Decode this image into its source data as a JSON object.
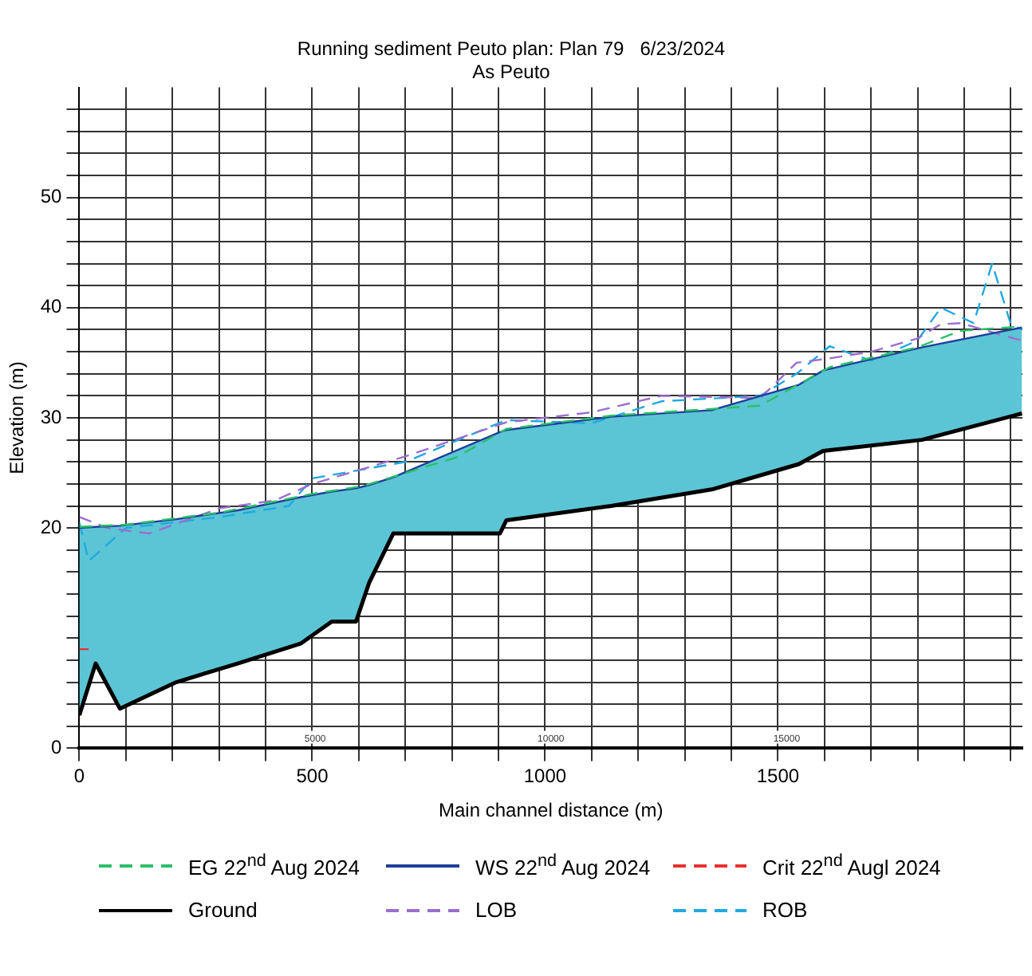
{
  "chart_data": {
    "type": "line",
    "title": "Running sediment Peuto plan: Plan 79   6/23/2024",
    "subtitle": "As Peuto",
    "xlabel": "Main channel distance (m)",
    "ylabel": "Elevation (m)",
    "xlim": [
      0,
      2025
    ],
    "ylim": [
      0,
      60
    ],
    "xticks": [
      0,
      {
        "value": 100,
        "label": null
      },
      {
        "value": 200,
        "label": null
      },
      {
        "value": 300,
        "label": null
      },
      {
        "value": 400,
        "label": null
      },
      500,
      {
        "value": 600,
        "label": null
      },
      {
        "value": 700,
        "label": null
      },
      {
        "value": 800,
        "label": null
      },
      {
        "value": 900,
        "label": null
      },
      1000,
      {
        "value": 1100,
        "label": null
      },
      {
        "value": 1200,
        "label": null
      },
      {
        "value": 1300,
        "label": null
      },
      {
        "value": 1400,
        "label": null
      },
      1500,
      {
        "value": 1600,
        "label": null
      },
      {
        "value": 1700,
        "label": null
      },
      {
        "value": 1800,
        "label": null
      },
      {
        "value": 1900,
        "label": null
      },
      {
        "value": 2000,
        "label": null
      }
    ],
    "yticks": [
      0,
      {
        "value": 2,
        "label": null
      },
      {
        "value": 4,
        "label": null
      },
      {
        "value": 6,
        "label": null
      },
      {
        "value": 8,
        "label": null
      },
      {
        "value": 10,
        "label": null
      },
      {
        "value": 12,
        "label": null
      },
      {
        "value": 14,
        "label": null
      },
      {
        "value": 16,
        "label": null
      },
      {
        "value": 18,
        "label": null
      },
      20,
      {
        "value": 22,
        "label": null
      },
      {
        "value": 24,
        "label": null
      },
      {
        "value": 26,
        "label": null
      },
      {
        "value": 28,
        "label": null
      },
      30,
      {
        "value": 32,
        "label": null
      },
      {
        "value": 34,
        "label": null
      },
      {
        "value": 36,
        "label": null
      },
      {
        "value": 38,
        "label": null
      },
      40,
      {
        "value": 42,
        "label": null
      },
      {
        "value": 44,
        "label": null
      },
      {
        "value": 46,
        "label": null
      },
      {
        "value": 48,
        "label": null
      },
      50,
      {
        "value": 52,
        "label": null
      },
      {
        "value": 54,
        "label": null
      },
      {
        "value": 56,
        "label": null
      },
      {
        "value": 58,
        "label": null
      }
    ],
    "grid": true,
    "legend": "bottom",
    "annotations": [
      "5000",
      "10000",
      "15000"
    ],
    "series": [
      {
        "name": "EG 22$^{nd}$ Aug 2024",
        "color": "#2bbf6a",
        "line_style": "dashed",
        "x": [
          0,
          100,
          302,
          500,
          608,
          809,
          917,
          1142,
          1462,
          1611,
          1799,
          1892,
          2024
        ],
        "values": [
          20.1,
          20.3,
          21.4,
          23.1,
          23.8,
          26.4,
          29.0,
          30.2,
          31.1,
          34.6,
          36.4,
          37.9,
          38.3
        ]
      },
      {
        "name": "WS 22$^{nd}$ Aug 2024",
        "color": "#1f3f99",
        "line_style": "solid",
        "x": [
          0,
          35,
          87,
          208,
          340,
          475,
          542,
          594,
          622,
          674,
          903,
          917,
          1142,
          1358,
          1545,
          1597,
          1809,
          2024
        ],
        "values": [
          20,
          20.1,
          20.2,
          20.8,
          21.6,
          22.8,
          23.3,
          23.6,
          23.9,
          24.6,
          28.7,
          28.9,
          30.1,
          30.7,
          33,
          34.3,
          36.4,
          38.2
        ],
        "lower": [
          3,
          7.7,
          3.6,
          6,
          7.7,
          9.5,
          11.5,
          11.5,
          15,
          19.5,
          19.5,
          20.7,
          22,
          23.5,
          25.8,
          27,
          28,
          30.4
        ],
        "upper": [
          20,
          20.1,
          20.2,
          20.8,
          21.6,
          22.8,
          23.3,
          23.6,
          23.9,
          24.6,
          28.7,
          28.9,
          30.1,
          30.7,
          33,
          34.3,
          36.4,
          38.2
        ]
      },
      {
        "name": "Crit 22$^{nd}$ Augl 2024",
        "color": "#e83030",
        "line_style": "dashed",
        "x": [
          0,
          20
        ],
        "values": [
          9,
          9
        ]
      },
      {
        "name": "Ground",
        "color": "#000000",
        "line_style": "solid",
        "x": [
          0,
          35,
          87,
          208,
          340,
          475,
          542,
          594,
          622,
          674,
          903,
          917,
          1142,
          1358,
          1545,
          1597,
          1809,
          2024
        ],
        "values": [
          3,
          7.7,
          3.6,
          6,
          7.7,
          9.5,
          11.5,
          11.5,
          15,
          19.5,
          19.5,
          20.7,
          22,
          23.5,
          25.8,
          27,
          28,
          30.4
        ]
      },
      {
        "name": "LOB",
        "color": "#9a6fcf",
        "line_style": "dashed",
        "x": [
          0,
          60,
          150,
          302,
          420,
          500,
          700,
          917,
          1100,
          1250,
          1462,
          1540,
          1611,
          1700,
          1799,
          1850,
          1892,
          2024
        ],
        "values": [
          21,
          20,
          19.5,
          21.8,
          22.5,
          24,
          26.5,
          29.6,
          30.5,
          32,
          31.8,
          35,
          35.4,
          36,
          37.2,
          38.5,
          38.6,
          37
        ]
      },
      {
        "name": "ROB",
        "color": "#21a8e0",
        "line_style": "dashed",
        "x": [
          0,
          20,
          100,
          302,
          450,
          500,
          700,
          917,
          1100,
          1250,
          1462,
          1540,
          1611,
          1700,
          1799,
          1850,
          1920,
          1960,
          2000,
          2024
        ],
        "values": [
          20.5,
          17,
          20,
          21,
          22,
          24.5,
          26,
          29.8,
          29.5,
          31.5,
          32,
          34,
          36.5,
          35.2,
          37,
          40,
          38.6,
          44,
          38.5,
          38
        ]
      }
    ]
  }
}
